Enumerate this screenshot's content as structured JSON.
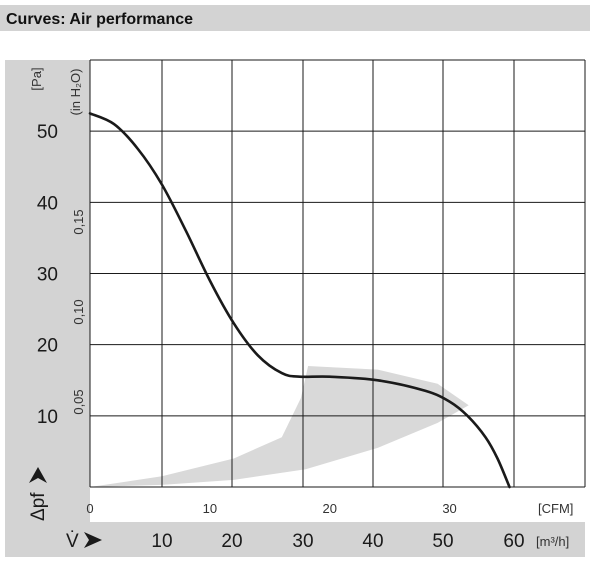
{
  "header": {
    "title": "Curves: Air performance"
  },
  "colors": {
    "header_bg": "#d3d3d3",
    "axis_bg": "#d3d3d3",
    "curve": "#1a1a1a",
    "band": "#d9d9d9",
    "grid": "#1a1a1a"
  },
  "chart_data": {
    "type": "line",
    "title": "Curves: Air performance",
    "grid": true,
    "x_axis": {
      "primary_unit": "[CFM]",
      "primary_ticks": [
        "0",
        "10",
        "20",
        "30"
      ],
      "primary_range": [
        0,
        41.3
      ],
      "secondary_symbol": "V̇",
      "secondary_unit": "[m³/h]",
      "secondary_ticks": [
        "10",
        "20",
        "30",
        "40",
        "50",
        "60"
      ]
    },
    "y_axis": {
      "label": "Δpf",
      "primary_unit": "[Pa]",
      "primary_ticks": [
        "10",
        "20",
        "30",
        "40",
        "50"
      ],
      "range": [
        0,
        60
      ],
      "secondary_unit": "(in H₂O)",
      "secondary_ticks": [
        "0,05",
        "0,10",
        "0,15"
      ]
    },
    "series": [
      {
        "points": [
          [
            0,
            52.5
          ],
          [
            2,
            51
          ],
          [
            4,
            47.5
          ],
          [
            6,
            42.5
          ],
          [
            8,
            36
          ],
          [
            10,
            29
          ],
          [
            12,
            23
          ],
          [
            14,
            18.5
          ],
          [
            16,
            16
          ],
          [
            17.5,
            15.5
          ],
          [
            20,
            15.5
          ],
          [
            24,
            15
          ],
          [
            28,
            13.5
          ],
          [
            30,
            12
          ],
          [
            31.5,
            10
          ],
          [
            33,
            7
          ],
          [
            34,
            4
          ],
          [
            35,
            0
          ]
        ]
      }
    ],
    "operating_band": [
      [
        0,
        0
      ],
      [
        6,
        1.5
      ],
      [
        12,
        4
      ],
      [
        16,
        7
      ],
      [
        17.6,
        12.5
      ],
      [
        18.2,
        17
      ],
      [
        24,
        16.5
      ],
      [
        29,
        14.5
      ],
      [
        31.6,
        11.5
      ],
      [
        29,
        9
      ],
      [
        24,
        5.5
      ],
      [
        18,
        2.5
      ],
      [
        12,
        1
      ],
      [
        6,
        0.3
      ],
      [
        0,
        0
      ]
    ]
  }
}
